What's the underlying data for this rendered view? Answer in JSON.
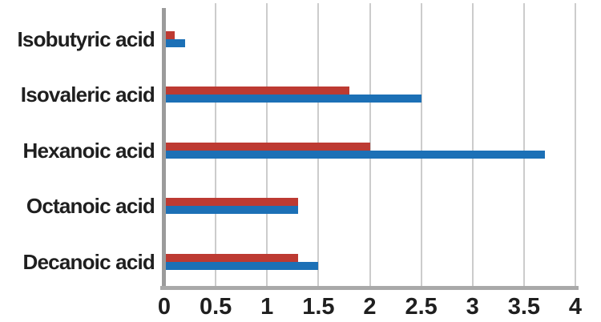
{
  "chart_data": {
    "type": "bar",
    "orientation": "horizontal",
    "title": "",
    "xlabel": "",
    "ylabel": "",
    "categories": [
      "Isobutyric acid",
      "Isovaleric acid",
      "Hexanoic acid",
      "Octanoic acid",
      "Decanoic acid"
    ],
    "series": [
      {
        "name": "red",
        "color": "#bd3a32",
        "values": [
          0.1,
          1.8,
          2.0,
          1.3,
          1.3
        ]
      },
      {
        "name": "blue",
        "color": "#1c70b6",
        "values": [
          0.2,
          2.5,
          3.7,
          1.3,
          1.5
        ]
      }
    ],
    "xlim": [
      0,
      4
    ],
    "xticks": [
      0,
      0.5,
      1,
      1.5,
      2,
      2.5,
      3,
      3.5,
      4
    ],
    "xtick_labels": [
      "0",
      "0.5",
      "1",
      "1.5",
      "2",
      "2.5",
      "3",
      "3.5",
      "4"
    ],
    "grid": true,
    "legend": false,
    "style": {
      "gridline_color": "#cccccc",
      "x_axis_color": "#a9a9a9",
      "y_axis_color": "#9b9b9b",
      "text_color": "#1f1f1f",
      "background": "#ffffff"
    }
  }
}
